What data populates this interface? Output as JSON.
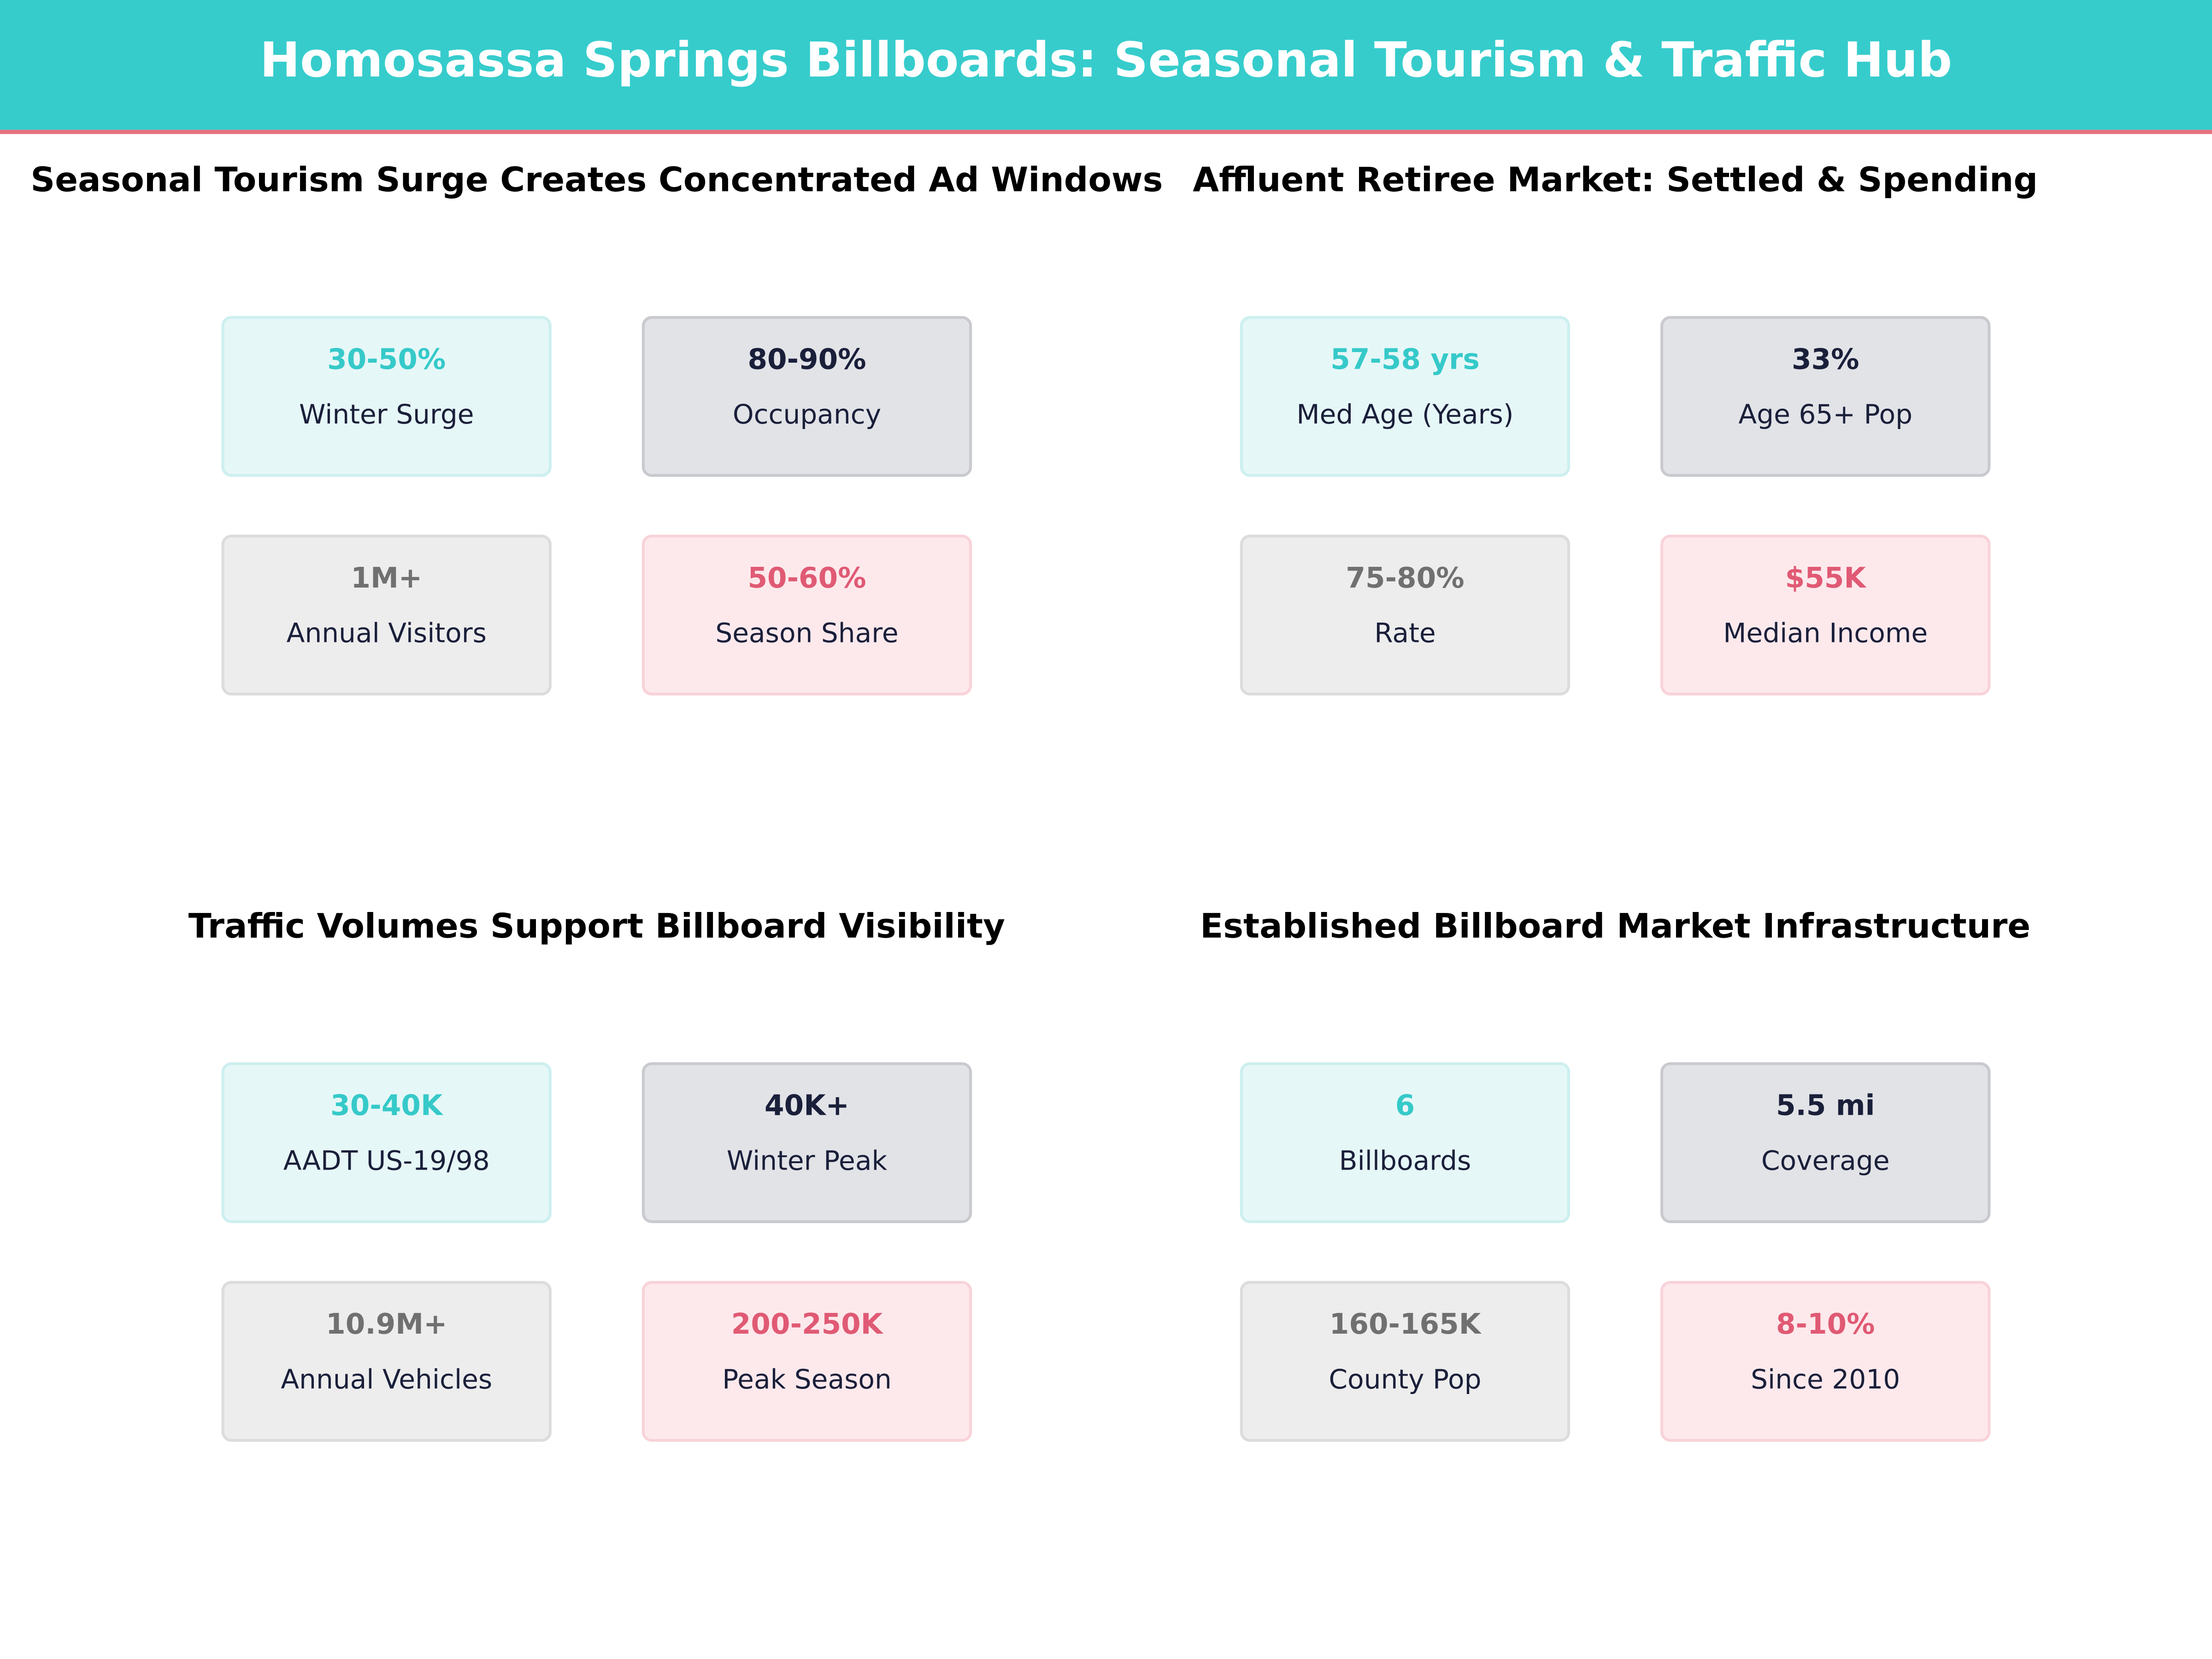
{
  "header": {
    "title": "Homosassa Springs Billboards: Seasonal Tourism & Traffic Hub"
  },
  "panels": [
    {
      "title": "Seasonal Tourism Surge Creates Concentrated Ad Windows",
      "cards": [
        {
          "value": "30-50%",
          "label": "Winter Surge"
        },
        {
          "value": "80-90%",
          "label": "Occupancy"
        },
        {
          "value": "1M+",
          "label": "Annual Visitors"
        },
        {
          "value": "50-60%",
          "label": "Season Share"
        }
      ]
    },
    {
      "title": "Affluent Retiree Market: Settled & Spending",
      "cards": [
        {
          "value": "57-58 yrs",
          "label": "Med Age (Years)"
        },
        {
          "value": "33%",
          "label": "Age 65+ Pop"
        },
        {
          "value": "75-80%",
          "label": "Rate"
        },
        {
          "value": "$55K",
          "label": "Median Income"
        }
      ]
    },
    {
      "title": "Traffic Volumes Support Billboard Visibility",
      "cards": [
        {
          "value": "30-40K",
          "label": "AADT US-19/98"
        },
        {
          "value": "40K+",
          "label": "Winter Peak"
        },
        {
          "value": "10.9M+",
          "label": "Annual Vehicles"
        },
        {
          "value": "200-250K",
          "label": "Peak Season"
        }
      ]
    },
    {
      "title": "Established Billboard Market Infrastructure",
      "cards": [
        {
          "value": "6",
          "label": "Billboards"
        },
        {
          "value": "5.5 mi",
          "label": "Coverage"
        },
        {
          "value": "160-165K",
          "label": "County Pop"
        },
        {
          "value": "8-10%",
          "label": "Since 2010"
        }
      ]
    }
  ]
}
